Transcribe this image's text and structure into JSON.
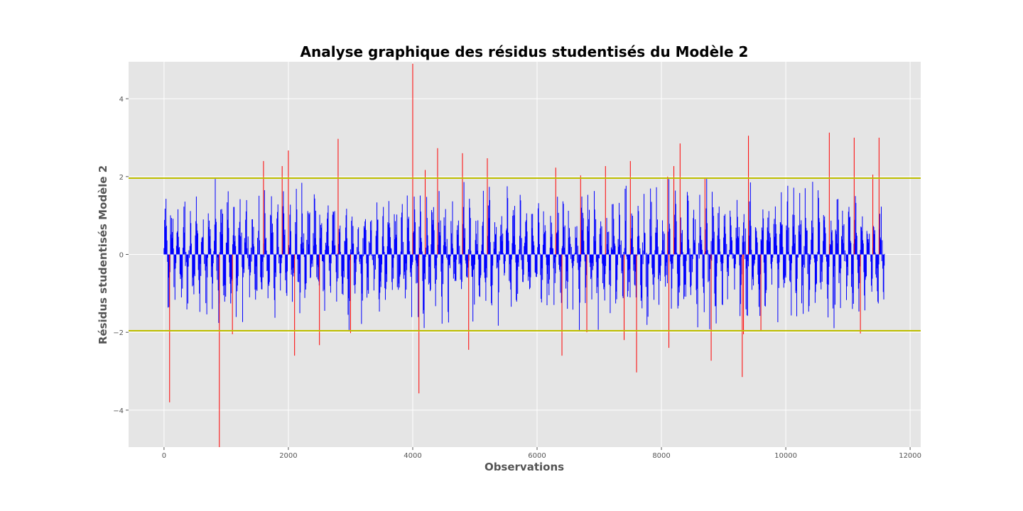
{
  "chart_data": {
    "type": "bar",
    "title": "Analyse graphique des résidus studentisés du Modèle 2",
    "xlabel": "Observations",
    "ylabel": "Résidus studentisés Modèle 2",
    "xlim": [
      -570,
      12170
    ],
    "ylim": [
      -4.95,
      4.95
    ],
    "xticks": [
      0,
      2000,
      4000,
      6000,
      8000,
      10000,
      12000
    ],
    "xtick_labels": [
      "0",
      "2000",
      "4000",
      "6000",
      "8000",
      "10000",
      "12000"
    ],
    "yticks": [
      -4,
      -2,
      0,
      2,
      4
    ],
    "ytick_labels": [
      "−4",
      "−2",
      "0",
      "2",
      "4"
    ],
    "grid": true,
    "reference_lines": [
      1.96,
      -1.96
    ],
    "colors": {
      "background": "#e5e5e5",
      "grid": "#ffffff",
      "inlier": "#0000ff",
      "outlier": "#ff0000",
      "reference_line": "#bfbf00"
    },
    "n_observations": 11600,
    "outliers": [
      {
        "x": 90,
        "value": -3.8
      },
      {
        "x": 890,
        "value": -4.95
      },
      {
        "x": 1100,
        "value": -2.05
      },
      {
        "x": 1600,
        "value": 2.4
      },
      {
        "x": 1900,
        "value": 2.27
      },
      {
        "x": 2000,
        "value": 2.67
      },
      {
        "x": 2100,
        "value": -2.6
      },
      {
        "x": 2500,
        "value": -2.33
      },
      {
        "x": 2800,
        "value": 2.97
      },
      {
        "x": 3000,
        "value": -2.02
      },
      {
        "x": 4000,
        "value": 4.9
      },
      {
        "x": 4100,
        "value": -3.57
      },
      {
        "x": 4200,
        "value": 2.17
      },
      {
        "x": 4400,
        "value": 2.73
      },
      {
        "x": 4800,
        "value": 2.6
      },
      {
        "x": 4900,
        "value": -2.45
      },
      {
        "x": 5200,
        "value": 2.47
      },
      {
        "x": 6300,
        "value": 2.23
      },
      {
        "x": 6400,
        "value": -2.6
      },
      {
        "x": 6700,
        "value": 2.03
      },
      {
        "x": 6800,
        "value": -2.0
      },
      {
        "x": 7100,
        "value": 2.27
      },
      {
        "x": 7400,
        "value": -2.2
      },
      {
        "x": 7500,
        "value": 2.4
      },
      {
        "x": 7600,
        "value": -3.03
      },
      {
        "x": 8100,
        "value": 2.0
      },
      {
        "x": 8120,
        "value": -2.4
      },
      {
        "x": 8200,
        "value": 2.27
      },
      {
        "x": 8300,
        "value": 2.85
      },
      {
        "x": 8700,
        "value": 1.97
      },
      {
        "x": 8800,
        "value": -2.73
      },
      {
        "x": 9300,
        "value": -3.15
      },
      {
        "x": 9320,
        "value": -2.05
      },
      {
        "x": 9400,
        "value": 3.05
      },
      {
        "x": 9600,
        "value": -1.97
      },
      {
        "x": 10700,
        "value": 3.13
      },
      {
        "x": 11100,
        "value": 3.0
      },
      {
        "x": 11200,
        "value": -2.03
      },
      {
        "x": 11400,
        "value": 2.05
      },
      {
        "x": 11500,
        "value": 3.0
      }
    ]
  }
}
